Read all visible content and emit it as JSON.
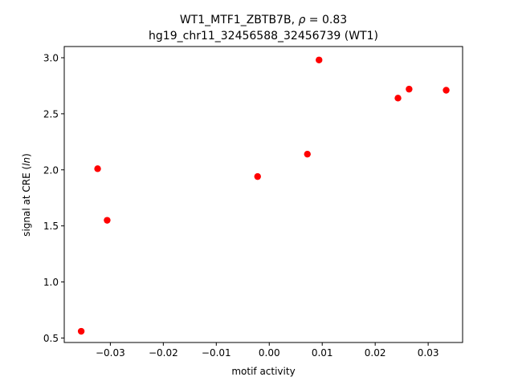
{
  "chart_data": {
    "type": "scatter",
    "title_line1_pre": "WT1_MTF1_ZBTB7B, ",
    "title_rho_symbol": "ρ",
    "title_rho_value": " = 0.83",
    "title_line2": "hg19_chr11_32456588_32456739 (WT1)",
    "xlabel": "motif activity",
    "ylabel_pre": "signal at CRE (",
    "ylabel_ital": "ln",
    "ylabel_post": ")",
    "xlim": [
      -0.0387,
      0.0365
    ],
    "ylim": [
      0.46,
      3.1
    ],
    "xticks": [
      -0.03,
      -0.02,
      -0.01,
      0.0,
      0.01,
      0.02,
      0.03
    ],
    "xtick_labels": [
      "−0.03",
      "−0.02",
      "−0.01",
      "0.00",
      "0.01",
      "0.02",
      "0.03"
    ],
    "yticks": [
      0.5,
      1.0,
      1.5,
      2.0,
      2.5,
      3.0
    ],
    "ytick_labels": [
      "0.5",
      "1.0",
      "1.5",
      "2.0",
      "2.5",
      "3.0"
    ],
    "marker_color": "#ff0000",
    "grid": false,
    "points": [
      {
        "x": -0.0355,
        "y": 0.56
      },
      {
        "x": -0.0324,
        "y": 2.01
      },
      {
        "x": -0.0306,
        "y": 1.55
      },
      {
        "x": -0.0022,
        "y": 1.94
      },
      {
        "x": 0.0072,
        "y": 2.14
      },
      {
        "x": 0.0094,
        "y": 2.98
      },
      {
        "x": 0.0243,
        "y": 2.64
      },
      {
        "x": 0.0264,
        "y": 2.72
      },
      {
        "x": 0.0334,
        "y": 2.71
      }
    ]
  }
}
